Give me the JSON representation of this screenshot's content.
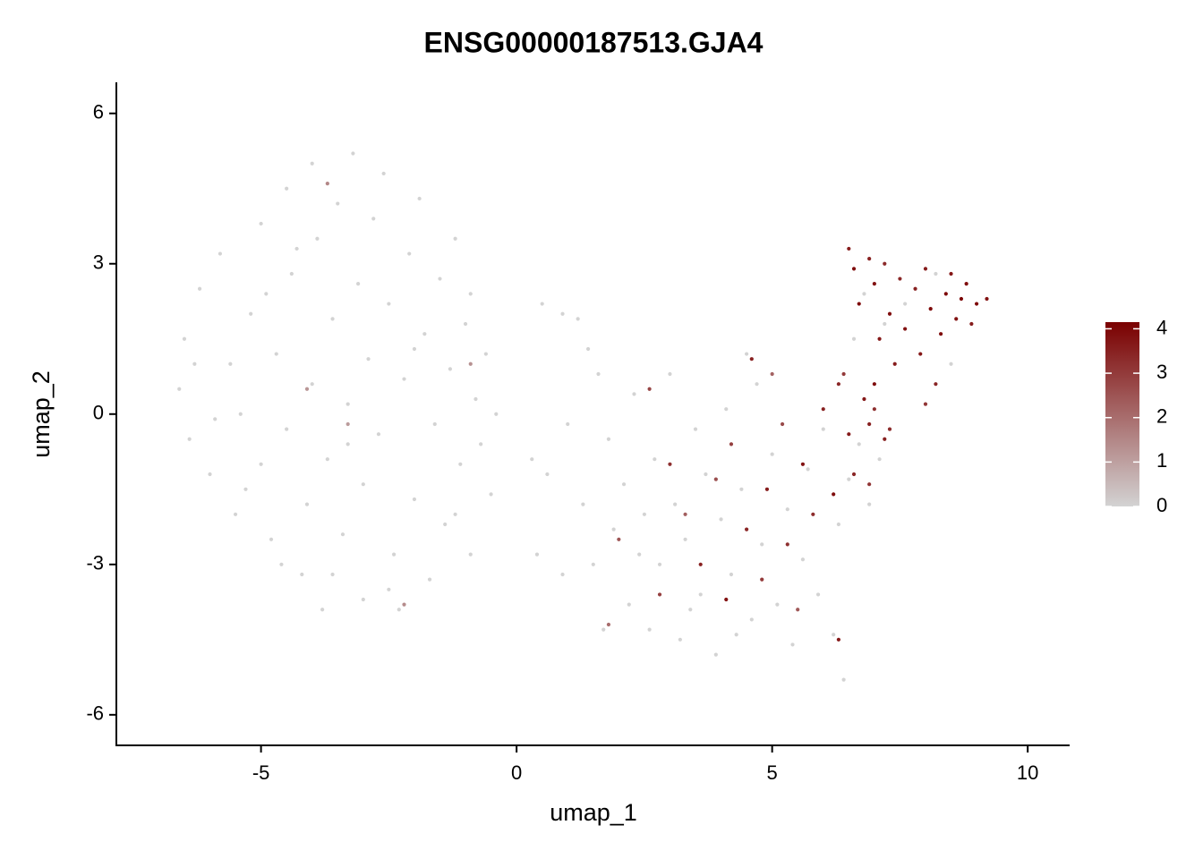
{
  "chart_data": {
    "type": "scatter",
    "title": "ENSG00000187513.GJA4",
    "x_label": "umap_1",
    "y_label": "umap_2",
    "x": [
      -6.5,
      -6.6,
      -6.4,
      -6.2,
      -6.0,
      -5.8,
      -5.6,
      -5.5,
      -5.4,
      -5.2,
      -5.0,
      -5.0,
      -4.8,
      -4.7,
      -4.5,
      -4.5,
      -4.4,
      -4.2,
      -4.1,
      -4.0,
      -4.0,
      -3.9,
      -3.8,
      -3.7,
      -3.6,
      -3.5,
      -3.4,
      -3.3,
      -3.2,
      -3.1,
      -3.0,
      -3.0,
      -2.9,
      -2.8,
      -2.7,
      -2.6,
      -2.5,
      -2.4,
      -2.3,
      -2.2,
      -2.1,
      -2.0,
      -1.9,
      -1.8,
      -1.7,
      -1.6,
      -1.5,
      -1.4,
      -1.3,
      -1.2,
      -1.1,
      -1.0,
      -0.9,
      -0.8,
      -0.7,
      -0.6,
      -0.5,
      -5.9,
      -6.3,
      -5.3,
      -4.3,
      -3.6,
      -2.5,
      -1.2,
      -0.9,
      -4.9,
      -2.0,
      -3.3,
      -4.6,
      -0.4,
      0.5,
      0.9,
      1.2,
      1.4,
      1.6,
      0.6,
      0.4,
      0.9,
      1.3,
      1.5,
      1.8,
      1.9,
      2.1,
      2.2,
      2.3,
      2.5,
      2.6,
      2.7,
      2.8,
      3.0,
      3.1,
      3.2,
      3.3,
      3.5,
      3.6,
      3.7,
      3.9,
      4.0,
      4.1,
      4.2,
      4.4,
      4.5,
      4.6,
      4.7,
      4.8,
      5.0,
      5.1,
      5.3,
      5.4,
      5.6,
      5.7,
      5.9,
      6.0,
      6.2,
      6.3,
      6.4,
      6.5,
      6.7,
      6.9,
      7.1,
      1.7,
      2.4,
      3.4,
      4.3,
      1.0,
      0.3,
      6.8,
      7.6,
      8.2,
      7.2,
      8.5,
      6.6,
      -3.7,
      -4.1,
      -2.2,
      -3.3,
      -0.9,
      1.8,
      2.0,
      2.6,
      3.0,
      3.3,
      3.6,
      3.9,
      4.1,
      4.2,
      4.5,
      4.6,
      4.8,
      4.9,
      5.2,
      5.3,
      5.5,
      5.6,
      5.8,
      6.0,
      6.2,
      6.3,
      6.4,
      6.5,
      6.6,
      6.8,
      6.9,
      7.0,
      7.2,
      5.0,
      2.8,
      6.5,
      6.6,
      6.7,
      6.9,
      7.0,
      7.1,
      7.2,
      7.3,
      7.4,
      7.5,
      7.6,
      7.8,
      7.9,
      8.0,
      8.1,
      8.2,
      8.3,
      8.4,
      8.5,
      8.6,
      8.7,
      8.8,
      8.9,
      9.0,
      9.2,
      7.0,
      6.9,
      7.3,
      8.0,
      6.3
    ],
    "y": [
      1.5,
      0.5,
      -0.5,
      2.5,
      -1.2,
      3.2,
      1.0,
      -2.0,
      0.0,
      2.0,
      3.8,
      -1.0,
      -2.5,
      1.2,
      4.5,
      -0.3,
      2.8,
      -3.2,
      -1.8,
      5.0,
      0.6,
      3.5,
      -3.9,
      -0.9,
      1.9,
      4.2,
      -2.4,
      0.2,
      5.2,
      2.6,
      -3.7,
      -1.4,
      1.1,
      3.9,
      -0.4,
      4.8,
      2.2,
      -2.8,
      -3.9,
      0.7,
      3.2,
      -1.7,
      4.3,
      1.6,
      -3.3,
      -0.2,
      2.7,
      -2.2,
      0.9,
      3.5,
      -1.0,
      1.8,
      -2.8,
      0.3,
      -0.6,
      1.2,
      -1.6,
      -0.1,
      1.0,
      -1.5,
      3.3,
      -3.2,
      -3.5,
      -2.0,
      2.4,
      2.4,
      1.3,
      -0.6,
      -3.0,
      0.0,
      2.2,
      2.0,
      1.9,
      1.3,
      0.8,
      -1.2,
      -2.8,
      -3.2,
      -1.8,
      -3.0,
      -0.5,
      -2.3,
      -1.4,
      -3.8,
      0.4,
      -2.0,
      -4.3,
      -0.9,
      -3.0,
      0.8,
      -1.8,
      -4.5,
      -2.5,
      -0.3,
      -3.6,
      -1.2,
      -4.8,
      -2.1,
      0.1,
      -3.2,
      -1.5,
      1.2,
      -4.1,
      0.6,
      -2.6,
      -0.8,
      -3.8,
      -1.9,
      -4.6,
      -2.9,
      -1.1,
      -3.6,
      -0.3,
      -4.4,
      -2.2,
      -5.3,
      -1.3,
      -0.6,
      -1.8,
      -0.9,
      -4.3,
      -2.8,
      -3.9,
      -4.4,
      -0.2,
      -0.9,
      2.4,
      2.2,
      2.8,
      1.8,
      1.0,
      1.5,
      4.6,
      0.5,
      -3.8,
      -0.2,
      1.0,
      -4.2,
      -2.5,
      0.5,
      -1.0,
      -2.0,
      -3.0,
      -1.3,
      -3.7,
      -0.6,
      -2.3,
      1.1,
      -3.3,
      -1.5,
      -0.2,
      -2.6,
      -3.9,
      -1.0,
      -2.0,
      0.1,
      -1.6,
      -4.5,
      0.8,
      -0.4,
      -1.2,
      0.3,
      -1.4,
      0.6,
      -0.5,
      0.8,
      -3.6,
      3.3,
      2.9,
      2.2,
      3.1,
      2.6,
      1.5,
      3.0,
      2.0,
      1.0,
      2.7,
      1.7,
      2.5,
      1.2,
      2.9,
      2.1,
      0.6,
      1.6,
      2.4,
      2.8,
      1.9,
      2.3,
      2.6,
      1.8,
      2.2,
      2.3,
      0.1,
      -0.2,
      -0.3,
      0.2,
      0.6
    ],
    "values": [
      0,
      0,
      0,
      0,
      0,
      0,
      0,
      0,
      0,
      0,
      0,
      0,
      0,
      0,
      0,
      0,
      0,
      0,
      0,
      0,
      0,
      0,
      0,
      0,
      0,
      0,
      0,
      0,
      0,
      0,
      0,
      0,
      0,
      0,
      0,
      0,
      0,
      0,
      0,
      0,
      0,
      0,
      0,
      0,
      0,
      0,
      0,
      0,
      0,
      0,
      0,
      0,
      0,
      0,
      0,
      0,
      0,
      0,
      0,
      0,
      0,
      0,
      0,
      0,
      0,
      0,
      0,
      0,
      0,
      0,
      0,
      0,
      0,
      0,
      0,
      0,
      0,
      0,
      0,
      0,
      0,
      0,
      0,
      0,
      0,
      0,
      0,
      0,
      0,
      0,
      0,
      0,
      0,
      0,
      0,
      0,
      0,
      0,
      0,
      0,
      0,
      0,
      0,
      0,
      0,
      0,
      0,
      0,
      0,
      0,
      0,
      0,
      0,
      0,
      0,
      0,
      0,
      0,
      0,
      0,
      0,
      0,
      0,
      0,
      0,
      0,
      0,
      0,
      0,
      0,
      0,
      0,
      1.5,
      1.2,
      1.4,
      1.1,
      1.3,
      2.0,
      2.5,
      2.8,
      3.2,
      2.3,
      3.5,
      2.6,
      3.8,
      2.9,
      3.4,
      3.5,
      3.0,
      3.6,
      2.7,
      3.2,
      2.4,
      3.8,
      3.3,
      3.5,
      3.9,
      3.7,
      3.0,
      3.6,
      3.4,
      3.7,
      3.1,
      3.9,
      3.5,
      2.2,
      2.9,
      3.6,
      3.9,
      4.0,
      3.5,
      3.8,
      3.7,
      3.3,
      3.9,
      3.6,
      3.4,
      3.8,
      3.5,
      3.7,
      3.6,
      4.0,
      3.4,
      3.9,
      4.0,
      3.7,
      3.8,
      4.1,
      3.9,
      3.6,
      4.0,
      3.8,
      3.2,
      3.5,
      3.3,
      3.1,
      3.4
    ],
    "xlim": [
      -7.83,
      10.82
    ],
    "ylim": [
      -6.61,
      6.62
    ],
    "xticks": [
      -5,
      0,
      5,
      10
    ],
    "yticks": [
      -6,
      -3,
      0,
      3,
      6
    ],
    "colorbar": {
      "colors": [
        "#d3d3d3",
        "#7a0000"
      ],
      "limits": [
        0,
        4.15
      ],
      "ticks": [
        0,
        1,
        2,
        3,
        4
      ]
    }
  }
}
